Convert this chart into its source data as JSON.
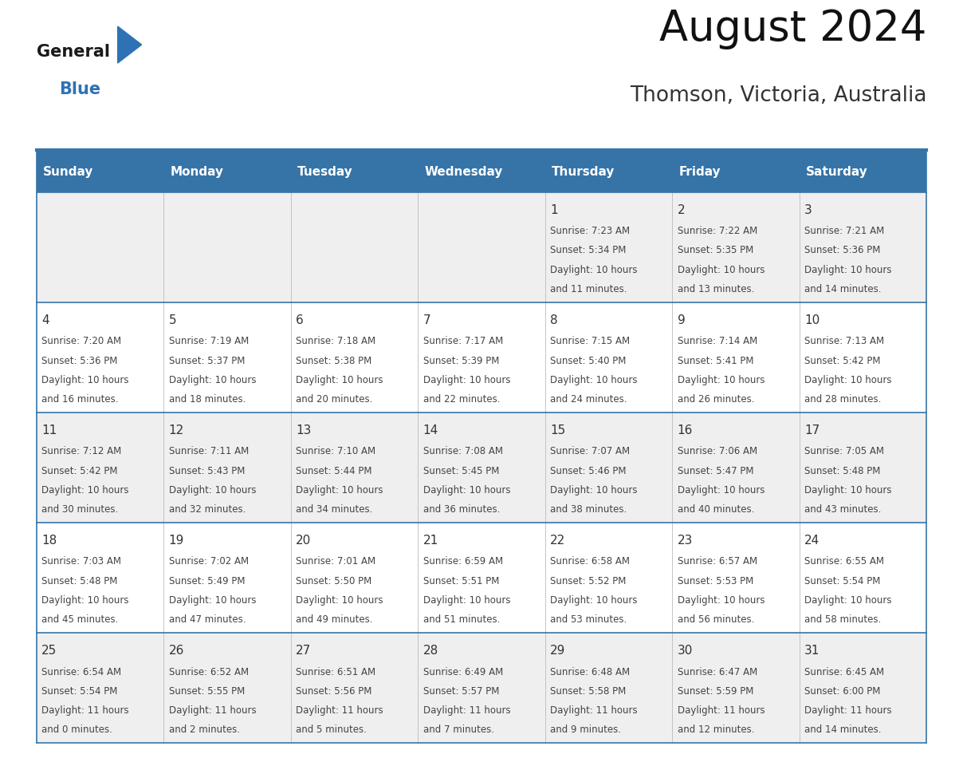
{
  "title": "August 2024",
  "subtitle": "Thomson, Victoria, Australia",
  "days_of_week": [
    "Sunday",
    "Monday",
    "Tuesday",
    "Wednesday",
    "Thursday",
    "Friday",
    "Saturday"
  ],
  "header_bg": "#3674a8",
  "header_text_color": "#FFFFFF",
  "cell_bg_white": "#FFFFFF",
  "cell_bg_gray": "#EFEFEF",
  "divider_color": "#3674a8",
  "day_number_color": "#333333",
  "cell_text_color": "#444444",
  "logo_general_color": "#1A1A1A",
  "logo_blue_color": "#2E72B5",
  "title_color": "#111111",
  "subtitle_color": "#333333",
  "weeks": [
    {
      "days": [
        {
          "date": "",
          "sunrise": "",
          "sunset": "",
          "daylight_h": "",
          "daylight_m": ""
        },
        {
          "date": "",
          "sunrise": "",
          "sunset": "",
          "daylight_h": "",
          "daylight_m": ""
        },
        {
          "date": "",
          "sunrise": "",
          "sunset": "",
          "daylight_h": "",
          "daylight_m": ""
        },
        {
          "date": "",
          "sunrise": "",
          "sunset": "",
          "daylight_h": "",
          "daylight_m": ""
        },
        {
          "date": "1",
          "sunrise": "7:23 AM",
          "sunset": "5:34 PM",
          "daylight_h": "10",
          "daylight_m": "11"
        },
        {
          "date": "2",
          "sunrise": "7:22 AM",
          "sunset": "5:35 PM",
          "daylight_h": "10",
          "daylight_m": "13"
        },
        {
          "date": "3",
          "sunrise": "7:21 AM",
          "sunset": "5:36 PM",
          "daylight_h": "10",
          "daylight_m": "14"
        }
      ]
    },
    {
      "days": [
        {
          "date": "4",
          "sunrise": "7:20 AM",
          "sunset": "5:36 PM",
          "daylight_h": "10",
          "daylight_m": "16"
        },
        {
          "date": "5",
          "sunrise": "7:19 AM",
          "sunset": "5:37 PM",
          "daylight_h": "10",
          "daylight_m": "18"
        },
        {
          "date": "6",
          "sunrise": "7:18 AM",
          "sunset": "5:38 PM",
          "daylight_h": "10",
          "daylight_m": "20"
        },
        {
          "date": "7",
          "sunrise": "7:17 AM",
          "sunset": "5:39 PM",
          "daylight_h": "10",
          "daylight_m": "22"
        },
        {
          "date": "8",
          "sunrise": "7:15 AM",
          "sunset": "5:40 PM",
          "daylight_h": "10",
          "daylight_m": "24"
        },
        {
          "date": "9",
          "sunrise": "7:14 AM",
          "sunset": "5:41 PM",
          "daylight_h": "10",
          "daylight_m": "26"
        },
        {
          "date": "10",
          "sunrise": "7:13 AM",
          "sunset": "5:42 PM",
          "daylight_h": "10",
          "daylight_m": "28"
        }
      ]
    },
    {
      "days": [
        {
          "date": "11",
          "sunrise": "7:12 AM",
          "sunset": "5:42 PM",
          "daylight_h": "10",
          "daylight_m": "30"
        },
        {
          "date": "12",
          "sunrise": "7:11 AM",
          "sunset": "5:43 PM",
          "daylight_h": "10",
          "daylight_m": "32"
        },
        {
          "date": "13",
          "sunrise": "7:10 AM",
          "sunset": "5:44 PM",
          "daylight_h": "10",
          "daylight_m": "34"
        },
        {
          "date": "14",
          "sunrise": "7:08 AM",
          "sunset": "5:45 PM",
          "daylight_h": "10",
          "daylight_m": "36"
        },
        {
          "date": "15",
          "sunrise": "7:07 AM",
          "sunset": "5:46 PM",
          "daylight_h": "10",
          "daylight_m": "38"
        },
        {
          "date": "16",
          "sunrise": "7:06 AM",
          "sunset": "5:47 PM",
          "daylight_h": "10",
          "daylight_m": "40"
        },
        {
          "date": "17",
          "sunrise": "7:05 AM",
          "sunset": "5:48 PM",
          "daylight_h": "10",
          "daylight_m": "43"
        }
      ]
    },
    {
      "days": [
        {
          "date": "18",
          "sunrise": "7:03 AM",
          "sunset": "5:48 PM",
          "daylight_h": "10",
          "daylight_m": "45"
        },
        {
          "date": "19",
          "sunrise": "7:02 AM",
          "sunset": "5:49 PM",
          "daylight_h": "10",
          "daylight_m": "47"
        },
        {
          "date": "20",
          "sunrise": "7:01 AM",
          "sunset": "5:50 PM",
          "daylight_h": "10",
          "daylight_m": "49"
        },
        {
          "date": "21",
          "sunrise": "6:59 AM",
          "sunset": "5:51 PM",
          "daylight_h": "10",
          "daylight_m": "51"
        },
        {
          "date": "22",
          "sunrise": "6:58 AM",
          "sunset": "5:52 PM",
          "daylight_h": "10",
          "daylight_m": "53"
        },
        {
          "date": "23",
          "sunrise": "6:57 AM",
          "sunset": "5:53 PM",
          "daylight_h": "10",
          "daylight_m": "56"
        },
        {
          "date": "24",
          "sunrise": "6:55 AM",
          "sunset": "5:54 PM",
          "daylight_h": "10",
          "daylight_m": "58"
        }
      ]
    },
    {
      "days": [
        {
          "date": "25",
          "sunrise": "6:54 AM",
          "sunset": "5:54 PM",
          "daylight_h": "11",
          "daylight_m": "0"
        },
        {
          "date": "26",
          "sunrise": "6:52 AM",
          "sunset": "5:55 PM",
          "daylight_h": "11",
          "daylight_m": "2"
        },
        {
          "date": "27",
          "sunrise": "6:51 AM",
          "sunset": "5:56 PM",
          "daylight_h": "11",
          "daylight_m": "5"
        },
        {
          "date": "28",
          "sunrise": "6:49 AM",
          "sunset": "5:57 PM",
          "daylight_h": "11",
          "daylight_m": "7"
        },
        {
          "date": "29",
          "sunrise": "6:48 AM",
          "sunset": "5:58 PM",
          "daylight_h": "11",
          "daylight_m": "9"
        },
        {
          "date": "30",
          "sunrise": "6:47 AM",
          "sunset": "5:59 PM",
          "daylight_h": "11",
          "daylight_m": "12"
        },
        {
          "date": "31",
          "sunrise": "6:45 AM",
          "sunset": "6:00 PM",
          "daylight_h": "11",
          "daylight_m": "14"
        }
      ]
    }
  ]
}
